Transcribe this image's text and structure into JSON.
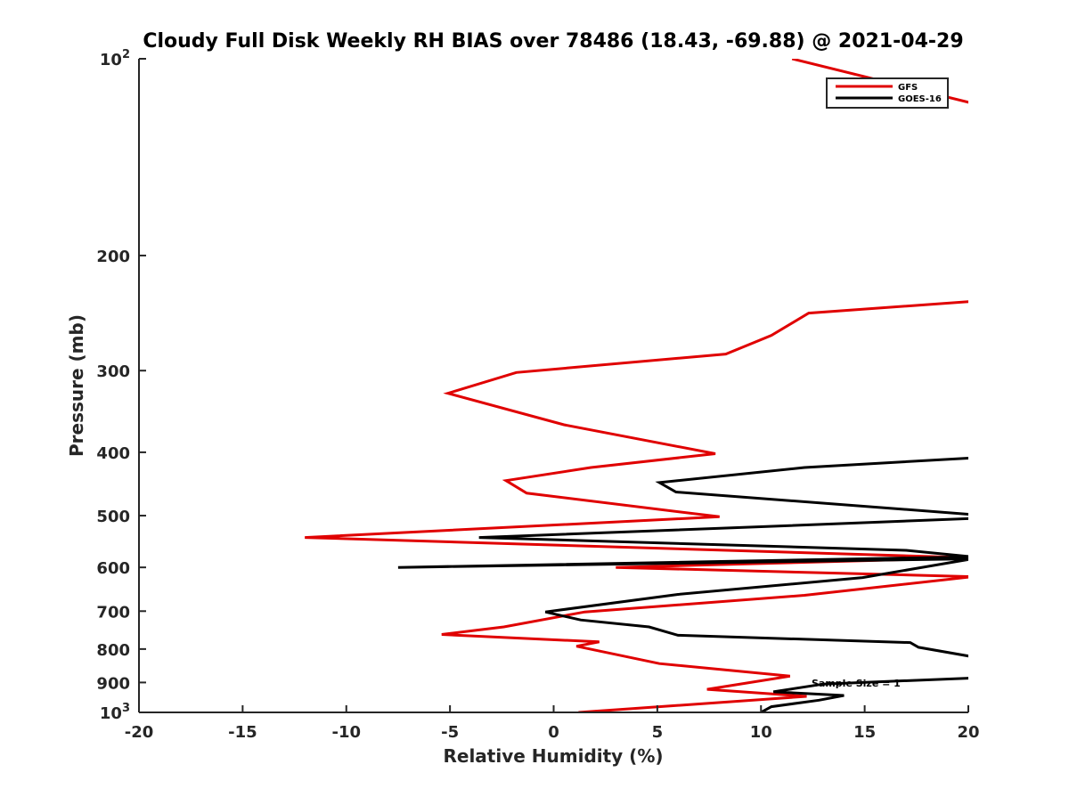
{
  "chart_data": {
    "type": "line",
    "title": "Cloudy Full Disk Weekly RH BIAS over 78486 (18.43, -69.88) @ 2021-04-29",
    "xlabel": "Relative Humidity (%)",
    "ylabel": "Pressure (mb)",
    "xlim": [
      -20,
      20
    ],
    "ylim": [
      100,
      1000
    ],
    "y_scale": "log",
    "y_reversed": true,
    "x_ticks": [
      -20,
      -15,
      -10,
      -5,
      0,
      5,
      10,
      15,
      20
    ],
    "x_tick_labels": [
      "-20",
      "-15",
      "-10",
      "-5",
      "0",
      "5",
      "10",
      "15",
      "20"
    ],
    "y_ticks": [
      100,
      200,
      300,
      400,
      500,
      600,
      700,
      800,
      900,
      1000
    ],
    "y_tick_labels": [
      {
        "base": "10",
        "exp": "2"
      },
      {
        "base": "200",
        "exp": ""
      },
      {
        "base": "300",
        "exp": ""
      },
      {
        "base": "400",
        "exp": ""
      },
      {
        "base": "500",
        "exp": ""
      },
      {
        "base": "600",
        "exp": ""
      },
      {
        "base": "700",
        "exp": ""
      },
      {
        "base": "800",
        "exp": ""
      },
      {
        "base": "900",
        "exp": ""
      },
      {
        "base": "10",
        "exp": "3"
      }
    ],
    "grid": false,
    "legend_position": "top-right",
    "annotation": "Sample Size = 1",
    "series": [
      {
        "name": "GFS",
        "color": "#e00000",
        "points": [
          [
            11.5,
            100
          ],
          [
            20.2,
            117
          ],
          [
            20.2,
            235
          ],
          [
            12.3,
            245
          ],
          [
            10.5,
            265
          ],
          [
            8.3,
            283
          ],
          [
            -1.8,
            302
          ],
          [
            -5.1,
            325
          ],
          [
            0.5,
            363
          ],
          [
            7.8,
            402
          ],
          [
            1.8,
            422
          ],
          [
            -2.3,
            442
          ],
          [
            -1.3,
            462
          ],
          [
            8.0,
            502
          ],
          [
            -12.0,
            540
          ],
          [
            20.2,
            580
          ],
          [
            3.0,
            600
          ],
          [
            20.2,
            620
          ],
          [
            12.1,
            662
          ],
          [
            1.5,
            702
          ],
          [
            -2.4,
            740
          ],
          [
            -5.4,
            760
          ],
          [
            2.2,
            780
          ],
          [
            1.1,
            792
          ],
          [
            5.1,
            842
          ],
          [
            11.4,
            880
          ],
          [
            7.4,
            922
          ],
          [
            12.2,
            945
          ],
          [
            1.2,
            1000
          ]
        ]
      },
      {
        "name": "GOES-16",
        "color": "#000000",
        "points": [
          [
            20.2,
            408
          ],
          [
            12.1,
            422
          ],
          [
            5.1,
            445
          ],
          [
            5.9,
            460
          ],
          [
            20.2,
            498
          ],
          [
            20.2,
            505
          ],
          [
            10.0,
            520
          ],
          [
            -3.6,
            540
          ],
          [
            17.0,
            565
          ],
          [
            20.2,
            578
          ],
          [
            -7.5,
            600
          ],
          [
            20.2,
            582
          ],
          [
            14.9,
            622
          ],
          [
            6.0,
            660
          ],
          [
            -0.4,
            702
          ],
          [
            1.3,
            722
          ],
          [
            4.6,
            740
          ],
          [
            6.0,
            762
          ],
          [
            17.2,
            782
          ],
          [
            17.6,
            795
          ],
          [
            20.2,
            822
          ],
          [
            20.2,
            886
          ],
          [
            13.0,
            905
          ],
          [
            10.6,
            930
          ],
          [
            14.0,
            942
          ],
          [
            12.8,
            958
          ],
          [
            10.5,
            980
          ],
          [
            10.0,
            1000
          ]
        ]
      }
    ]
  }
}
